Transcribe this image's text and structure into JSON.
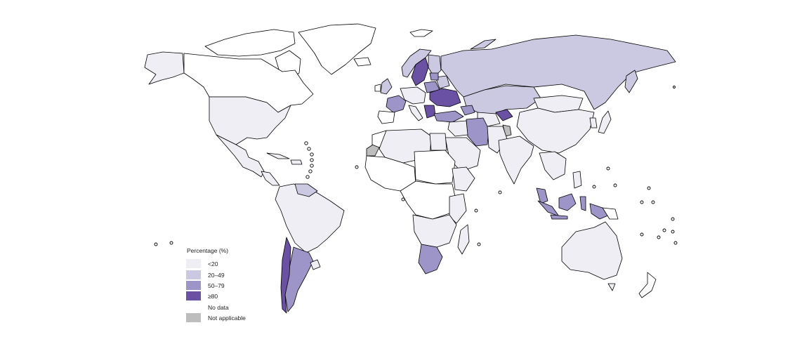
{
  "legend": {
    "title": "Percentage (%)",
    "items": [
      {
        "label": "<20",
        "color": "#efeef5"
      },
      {
        "label": "20–49",
        "color": "#cbc8e2"
      },
      {
        "label": "50–79",
        "color": "#9d95c8"
      },
      {
        "label": "≥80",
        "color": "#6a51a3"
      },
      {
        "label": "No data",
        "color": "#ffffff"
      },
      {
        "label": "Not applicable",
        "color": "#bdbdbd"
      }
    ]
  },
  "colors": {
    "lt20": "#efeef5",
    "c20_49": "#cbc8e2",
    "c50_79": "#9d95c8",
    "ge80": "#6a51a3",
    "no_data": "#ffffff",
    "not_applicable": "#bdbdbd",
    "border": "#000000"
  }
}
